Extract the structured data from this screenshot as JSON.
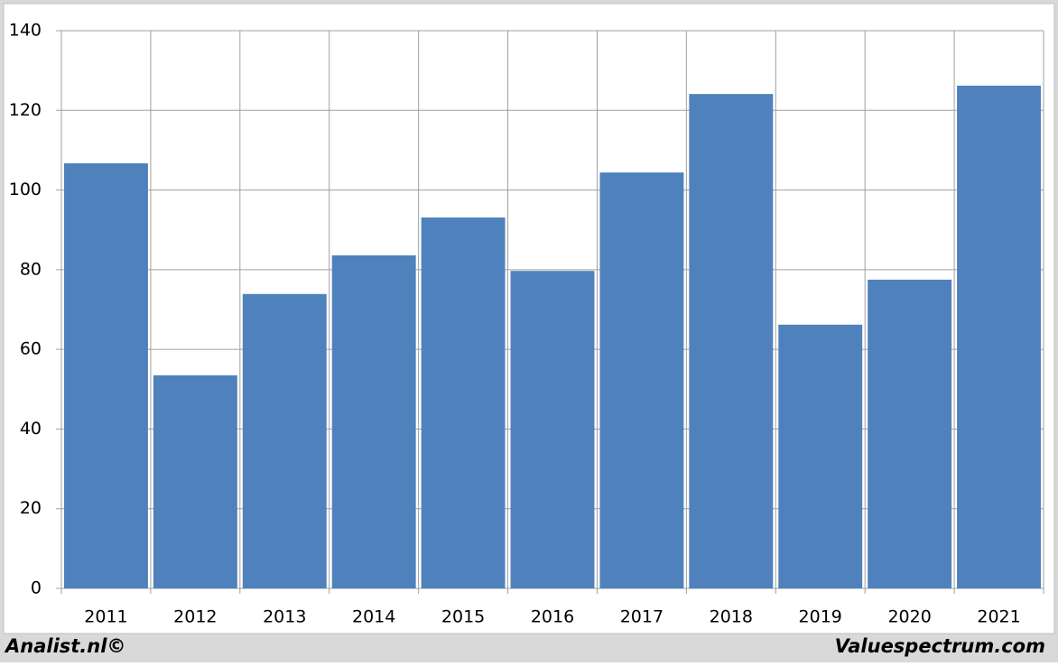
{
  "chart_data": {
    "type": "bar",
    "categories": [
      "2011",
      "2012",
      "2013",
      "2014",
      "2015",
      "2016",
      "2017",
      "2018",
      "2019",
      "2020",
      "2021"
    ],
    "values": [
      106.7,
      53.5,
      73.9,
      83.6,
      93.1,
      79.7,
      104.4,
      124.1,
      66.2,
      77.5,
      126.2
    ],
    "color": "#4f81bd",
    "ylim": [
      0,
      140
    ],
    "yticks": [
      0,
      20,
      40,
      60,
      80,
      100,
      120,
      140
    ],
    "grid": true,
    "source_left": "Analist.nl©",
    "source_right": "Valuespectrum.com"
  }
}
